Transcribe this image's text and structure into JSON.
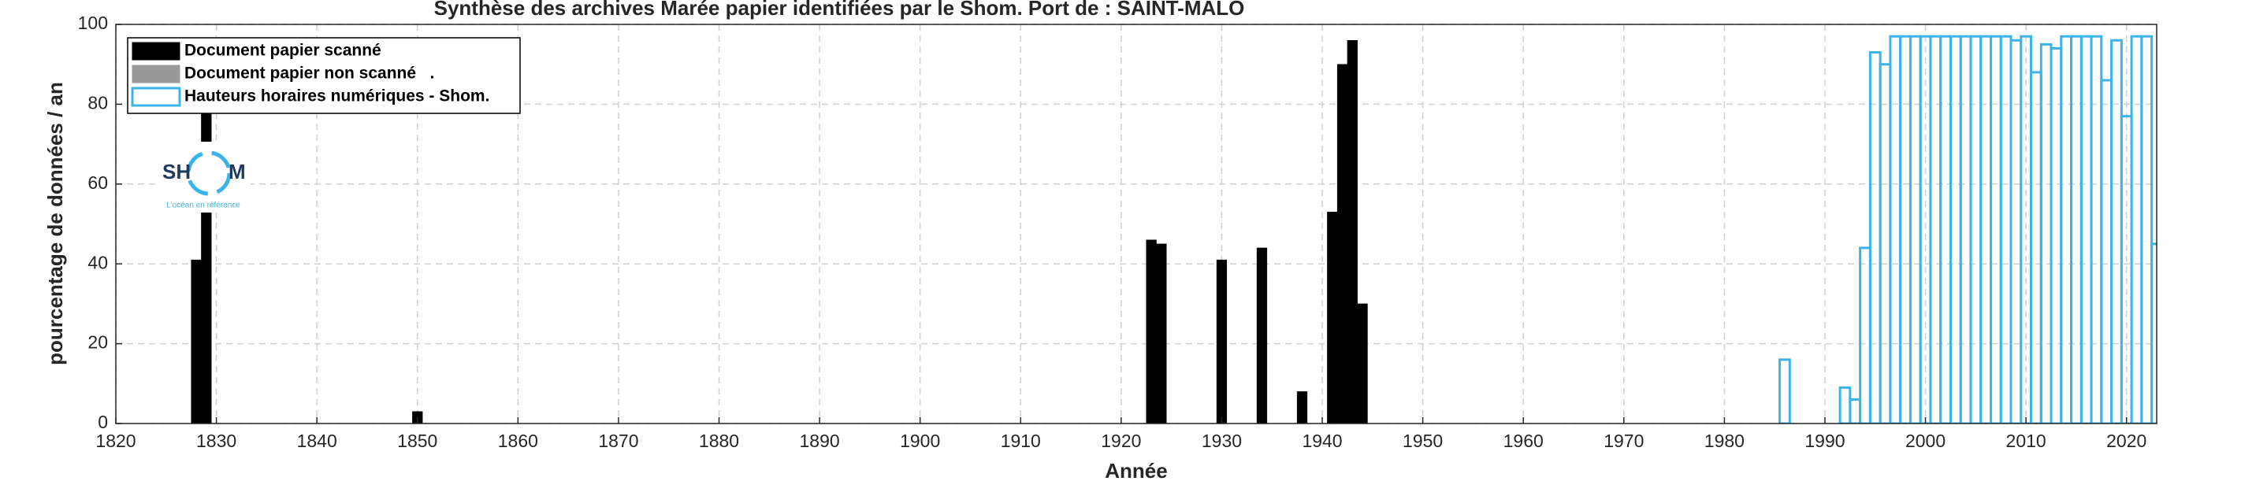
{
  "chart_data": {
    "type": "bar",
    "title": "Synthèse des archives Marée papier identifiées par le Shom. Port de : SAINT-MALO",
    "xlabel": "Année",
    "ylabel": "pourcentage de données / an",
    "xlim": [
      1820,
      2023
    ],
    "ylim": [
      0,
      100
    ],
    "xticks": [
      1820,
      1830,
      1840,
      1850,
      1860,
      1870,
      1880,
      1890,
      1900,
      1910,
      1920,
      1930,
      1940,
      1950,
      1960,
      1970,
      1980,
      1990,
      2000,
      2010,
      2020
    ],
    "yticks": [
      0,
      20,
      40,
      60,
      80,
      100
    ],
    "grid": true,
    "series": [
      {
        "name": "Document papier scanné",
        "color": "#000000",
        "filled": true,
        "x": [
          1828,
          1829,
          1850,
          1923,
          1924,
          1930,
          1934,
          1938,
          1941,
          1942,
          1943,
          1944
        ],
        "values": [
          41,
          78,
          3,
          46,
          45,
          41,
          44,
          8,
          53,
          90,
          96,
          30
        ]
      },
      {
        "name": "Document papier non scanné   .",
        "color": "#999999",
        "filled": true,
        "x": [],
        "values": []
      },
      {
        "name": "Hauteurs horaires numériques - Shom.",
        "color": "#3cb4ea",
        "filled": false,
        "x": [
          1986,
          1992,
          1993,
          1994,
          1995,
          1996,
          1997,
          1998,
          1999,
          2000,
          2001,
          2002,
          2003,
          2004,
          2005,
          2006,
          2007,
          2008,
          2009,
          2010,
          2011,
          2012,
          2013,
          2014,
          2015,
          2016,
          2017,
          2018,
          2019,
          2020,
          2021,
          2022,
          2023
        ],
        "values": [
          16,
          9,
          6,
          44,
          93,
          90,
          97,
          97,
          97,
          97,
          97,
          97,
          97,
          97,
          97,
          97,
          97,
          97,
          96,
          97,
          88,
          95,
          94,
          97,
          97,
          97,
          97,
          86,
          96,
          77,
          97,
          97,
          45
        ]
      }
    ]
  },
  "logo": {
    "left": "SH",
    "right": "M",
    "tagline": "L'océan en référence"
  }
}
